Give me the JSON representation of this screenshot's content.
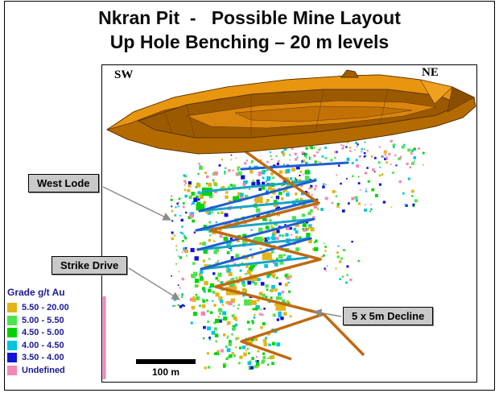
{
  "title": {
    "line1": "Nkran Pit  -   Possible Mine Layout",
    "line2": "Up Hole Benching – 20 m levels"
  },
  "plot": {
    "direction_left": "SW",
    "direction_right": "NE"
  },
  "callouts": {
    "west_lode": "West Lode",
    "strike_drive": "Strike Drive",
    "decline": "5 x 5m Decline"
  },
  "legend": {
    "title": "Grade g/t Au",
    "items": [
      {
        "label": "5.50 - 20.00",
        "color": "#E3B418"
      },
      {
        "label": "5.00 - 5.50",
        "color": "#4DE34D"
      },
      {
        "label": "4.50 - 5.00",
        "color": "#00D500"
      },
      {
        "label": "4.00 - 4.50",
        "color": "#00C4E0"
      },
      {
        "label": "3.50 - 4.00",
        "color": "#1212D9"
      },
      {
        "label": "Undefined",
        "color": "#F287B7"
      }
    ]
  },
  "scalebar": {
    "label": "100 m"
  },
  "colors": {
    "pit_main": "#B36B00",
    "pit_light": "#E8960F",
    "decline": "#BF6A12",
    "strike_blue": "#1E5FD0",
    "strike_teal": "#1BA3C4",
    "pink_strip": "#F287B7",
    "arrow_gray": "#8C8C8C"
  }
}
